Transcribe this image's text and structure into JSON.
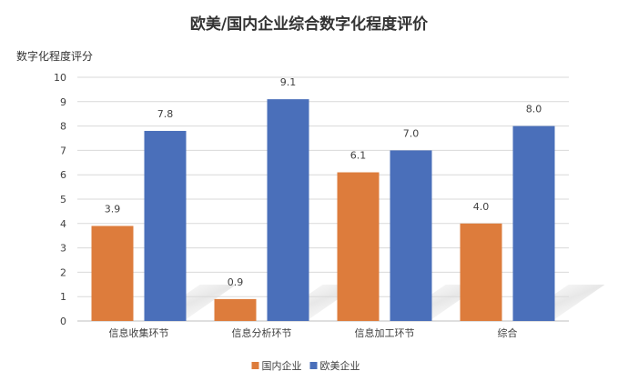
{
  "chart_data": {
    "type": "bar",
    "title": "欧美/国内企业综合数字化程度评价",
    "ylabel": "数字化程度评分",
    "xlabel": "",
    "categories": [
      "信息收集环节",
      "信息分析环节",
      "信息加工环节",
      "综合"
    ],
    "series": [
      {
        "name": "国内企业",
        "values": [
          3.9,
          0.9,
          6.1,
          4.0
        ],
        "color": "#dd7c3c"
      },
      {
        "name": "欧美企业",
        "values": [
          7.8,
          9.1,
          7.0,
          8.0
        ],
        "color": "#4a6fba"
      }
    ],
    "ylim": [
      0,
      10
    ],
    "yticks": [
      "0",
      "1",
      "2",
      "3",
      "4",
      "5",
      "6",
      "7",
      "8",
      "9",
      "10"
    ],
    "data_labels": true,
    "grid": true,
    "legend": "bottom",
    "colors": {
      "grid": "#d9d9d9",
      "text": "#404040",
      "title": "#333333"
    }
  }
}
